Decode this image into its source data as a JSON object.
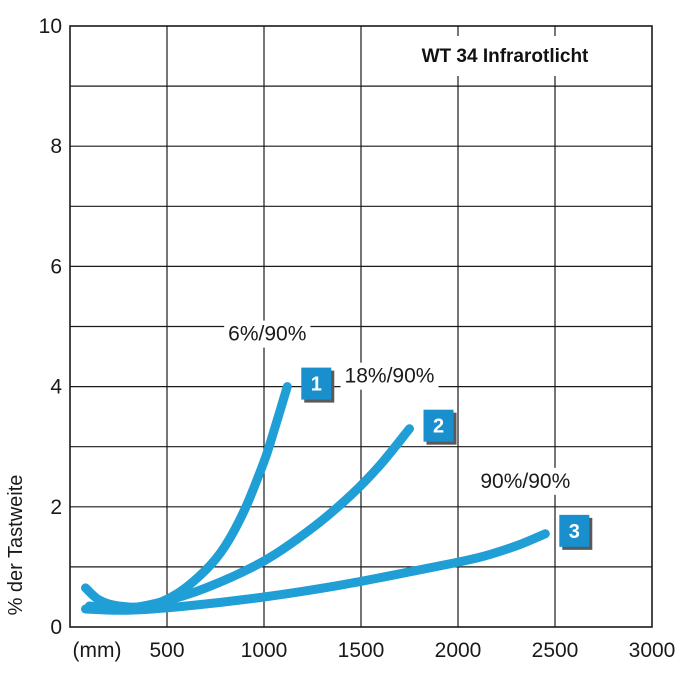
{
  "chart_data": {
    "type": "line",
    "title": "WT 34 Infrarotlicht",
    "xlabel": "(mm)",
    "ylabel": "% der Tastweite",
    "xlim": [
      0,
      3000
    ],
    "ylim": [
      0,
      10
    ],
    "x_ticks": [
      "500",
      "1000",
      "1500",
      "2000",
      "2500",
      "3000"
    ],
    "y_ticks": [
      "0",
      "2",
      "4",
      "6",
      "8",
      "10"
    ],
    "grid": true,
    "line_color": "#1f9fd6",
    "badge_color": "#1a8fcd",
    "series": [
      {
        "name": "6%/90%",
        "badge": "1",
        "x": [
          80,
          150,
          250,
          400,
          550,
          700,
          800,
          900,
          1000,
          1050,
          1120
        ],
        "y": [
          0.65,
          0.45,
          0.35,
          0.35,
          0.55,
          0.95,
          1.35,
          1.95,
          2.75,
          3.25,
          4.0
        ]
      },
      {
        "name": "18%/90%",
        "badge": "2",
        "x": [
          100,
          250,
          450,
          700,
          1000,
          1250,
          1450,
          1600,
          1750
        ],
        "y": [
          0.35,
          0.3,
          0.4,
          0.65,
          1.1,
          1.65,
          2.2,
          2.7,
          3.3
        ]
      },
      {
        "name": "90%/90%",
        "badge": "3",
        "x": [
          80,
          300,
          600,
          1000,
          1400,
          1800,
          2100,
          2300,
          2450
        ],
        "y": [
          0.3,
          0.28,
          0.35,
          0.5,
          0.7,
          0.95,
          1.15,
          1.35,
          1.55
        ]
      }
    ]
  }
}
